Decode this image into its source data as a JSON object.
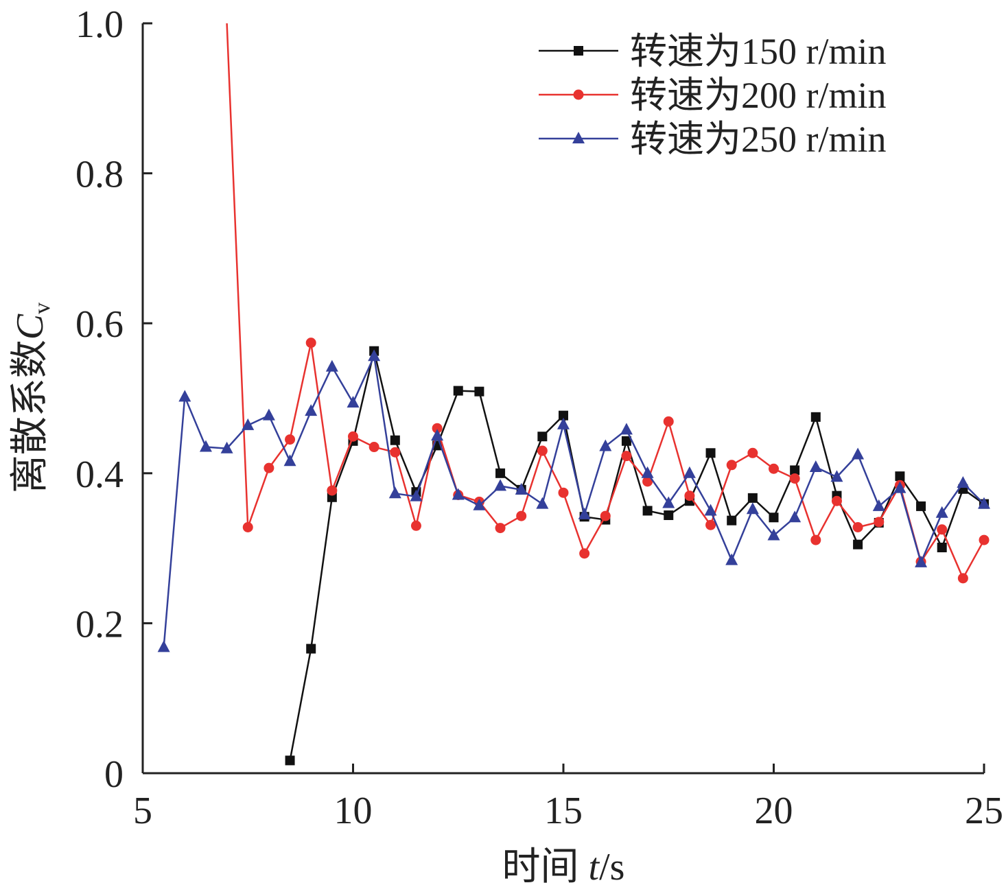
{
  "chart_data": {
    "type": "line",
    "title": "",
    "xlabel": {
      "prefix": "时间 ",
      "var": "t",
      "suffix": "/s"
    },
    "ylabel": {
      "prefix": "离散系数",
      "var": "C",
      "sub": "v"
    },
    "xlim": [
      5,
      25
    ],
    "ylim": [
      0,
      1.0
    ],
    "xticks": [
      5,
      10,
      15,
      20,
      25
    ],
    "xtick_labels": [
      "5",
      "10",
      "15",
      "20",
      "25"
    ],
    "yticks": [
      0,
      0.2,
      0.4,
      0.6,
      0.8,
      1.0
    ],
    "ytick_labels": [
      "0",
      "0.2",
      "0.4",
      "0.6",
      "0.8",
      "1.0"
    ],
    "grid": false,
    "legend_position": "top-right",
    "series": [
      {
        "name": "转速为150 r/min",
        "color": "#111111",
        "marker": "square",
        "x": [
          8.5,
          9.0,
          9.5,
          10.0,
          10.5,
          11.0,
          11.5,
          12.0,
          12.5,
          13.0,
          13.5,
          14.0,
          14.5,
          15.0,
          15.5,
          16.0,
          16.5,
          17.0,
          17.5,
          18.0,
          18.5,
          19.0,
          19.5,
          20.0,
          20.5,
          21.0,
          21.5,
          22.0,
          22.5,
          23.0,
          23.5,
          24.0,
          24.5,
          25.0
        ],
        "y": [
          0.017,
          0.166,
          0.368,
          0.443,
          0.563,
          0.444,
          0.375,
          0.437,
          0.51,
          0.509,
          0.4,
          0.378,
          0.449,
          0.477,
          0.342,
          0.338,
          0.443,
          0.35,
          0.344,
          0.363,
          0.427,
          0.337,
          0.367,
          0.341,
          0.404,
          0.475,
          0.37,
          0.305,
          0.334,
          0.396,
          0.356,
          0.301,
          0.379,
          0.359
        ]
      },
      {
        "name": "转速为200 r/min",
        "color": "#e8322f",
        "marker": "circle",
        "x": [
          7.0,
          7.5,
          8.0,
          8.5,
          9.0,
          9.5,
          10.0,
          10.5,
          11.0,
          11.5,
          12.0,
          12.5,
          13.0,
          13.5,
          14.0,
          14.5,
          15.0,
          15.5,
          16.0,
          16.5,
          17.0,
          17.5,
          18.0,
          18.5,
          19.0,
          19.5,
          20.0,
          20.5,
          21.0,
          21.5,
          22.0,
          22.5,
          23.0,
          23.5,
          24.0,
          24.5,
          25.0
        ],
        "y": [
          1.0,
          0.328,
          0.407,
          0.445,
          0.574,
          0.377,
          0.449,
          0.435,
          0.428,
          0.33,
          0.46,
          0.371,
          0.362,
          0.327,
          0.343,
          0.43,
          0.374,
          0.293,
          0.343,
          0.423,
          0.389,
          0.469,
          0.37,
          0.331,
          0.411,
          0.427,
          0.406,
          0.393,
          0.311,
          0.363,
          0.328,
          0.335,
          0.384,
          0.282,
          0.325,
          0.26,
          0.311
        ]
      },
      {
        "name": "转速为250 r/min",
        "color": "#34409a",
        "marker": "triangle",
        "x": [
          5.5,
          6.0,
          6.5,
          7.0,
          7.5,
          8.0,
          8.5,
          9.0,
          9.5,
          10.0,
          10.5,
          11.0,
          11.5,
          12.0,
          12.5,
          13.0,
          13.5,
          14.0,
          14.5,
          15.0,
          15.5,
          16.0,
          16.5,
          17.0,
          17.5,
          18.0,
          18.5,
          19.0,
          19.5,
          20.0,
          20.5,
          21.0,
          21.5,
          22.0,
          22.5,
          23.0,
          23.5,
          24.0,
          24.5,
          25.0
        ],
        "y": [
          0.168,
          0.502,
          0.435,
          0.433,
          0.464,
          0.477,
          0.416,
          0.483,
          0.542,
          0.494,
          0.556,
          0.373,
          0.369,
          0.45,
          0.371,
          0.357,
          0.383,
          0.378,
          0.359,
          0.465,
          0.345,
          0.436,
          0.458,
          0.4,
          0.36,
          0.4,
          0.35,
          0.284,
          0.352,
          0.317,
          0.341,
          0.408,
          0.395,
          0.425,
          0.356,
          0.38,
          0.281,
          0.347,
          0.387,
          0.359
        ]
      }
    ]
  }
}
